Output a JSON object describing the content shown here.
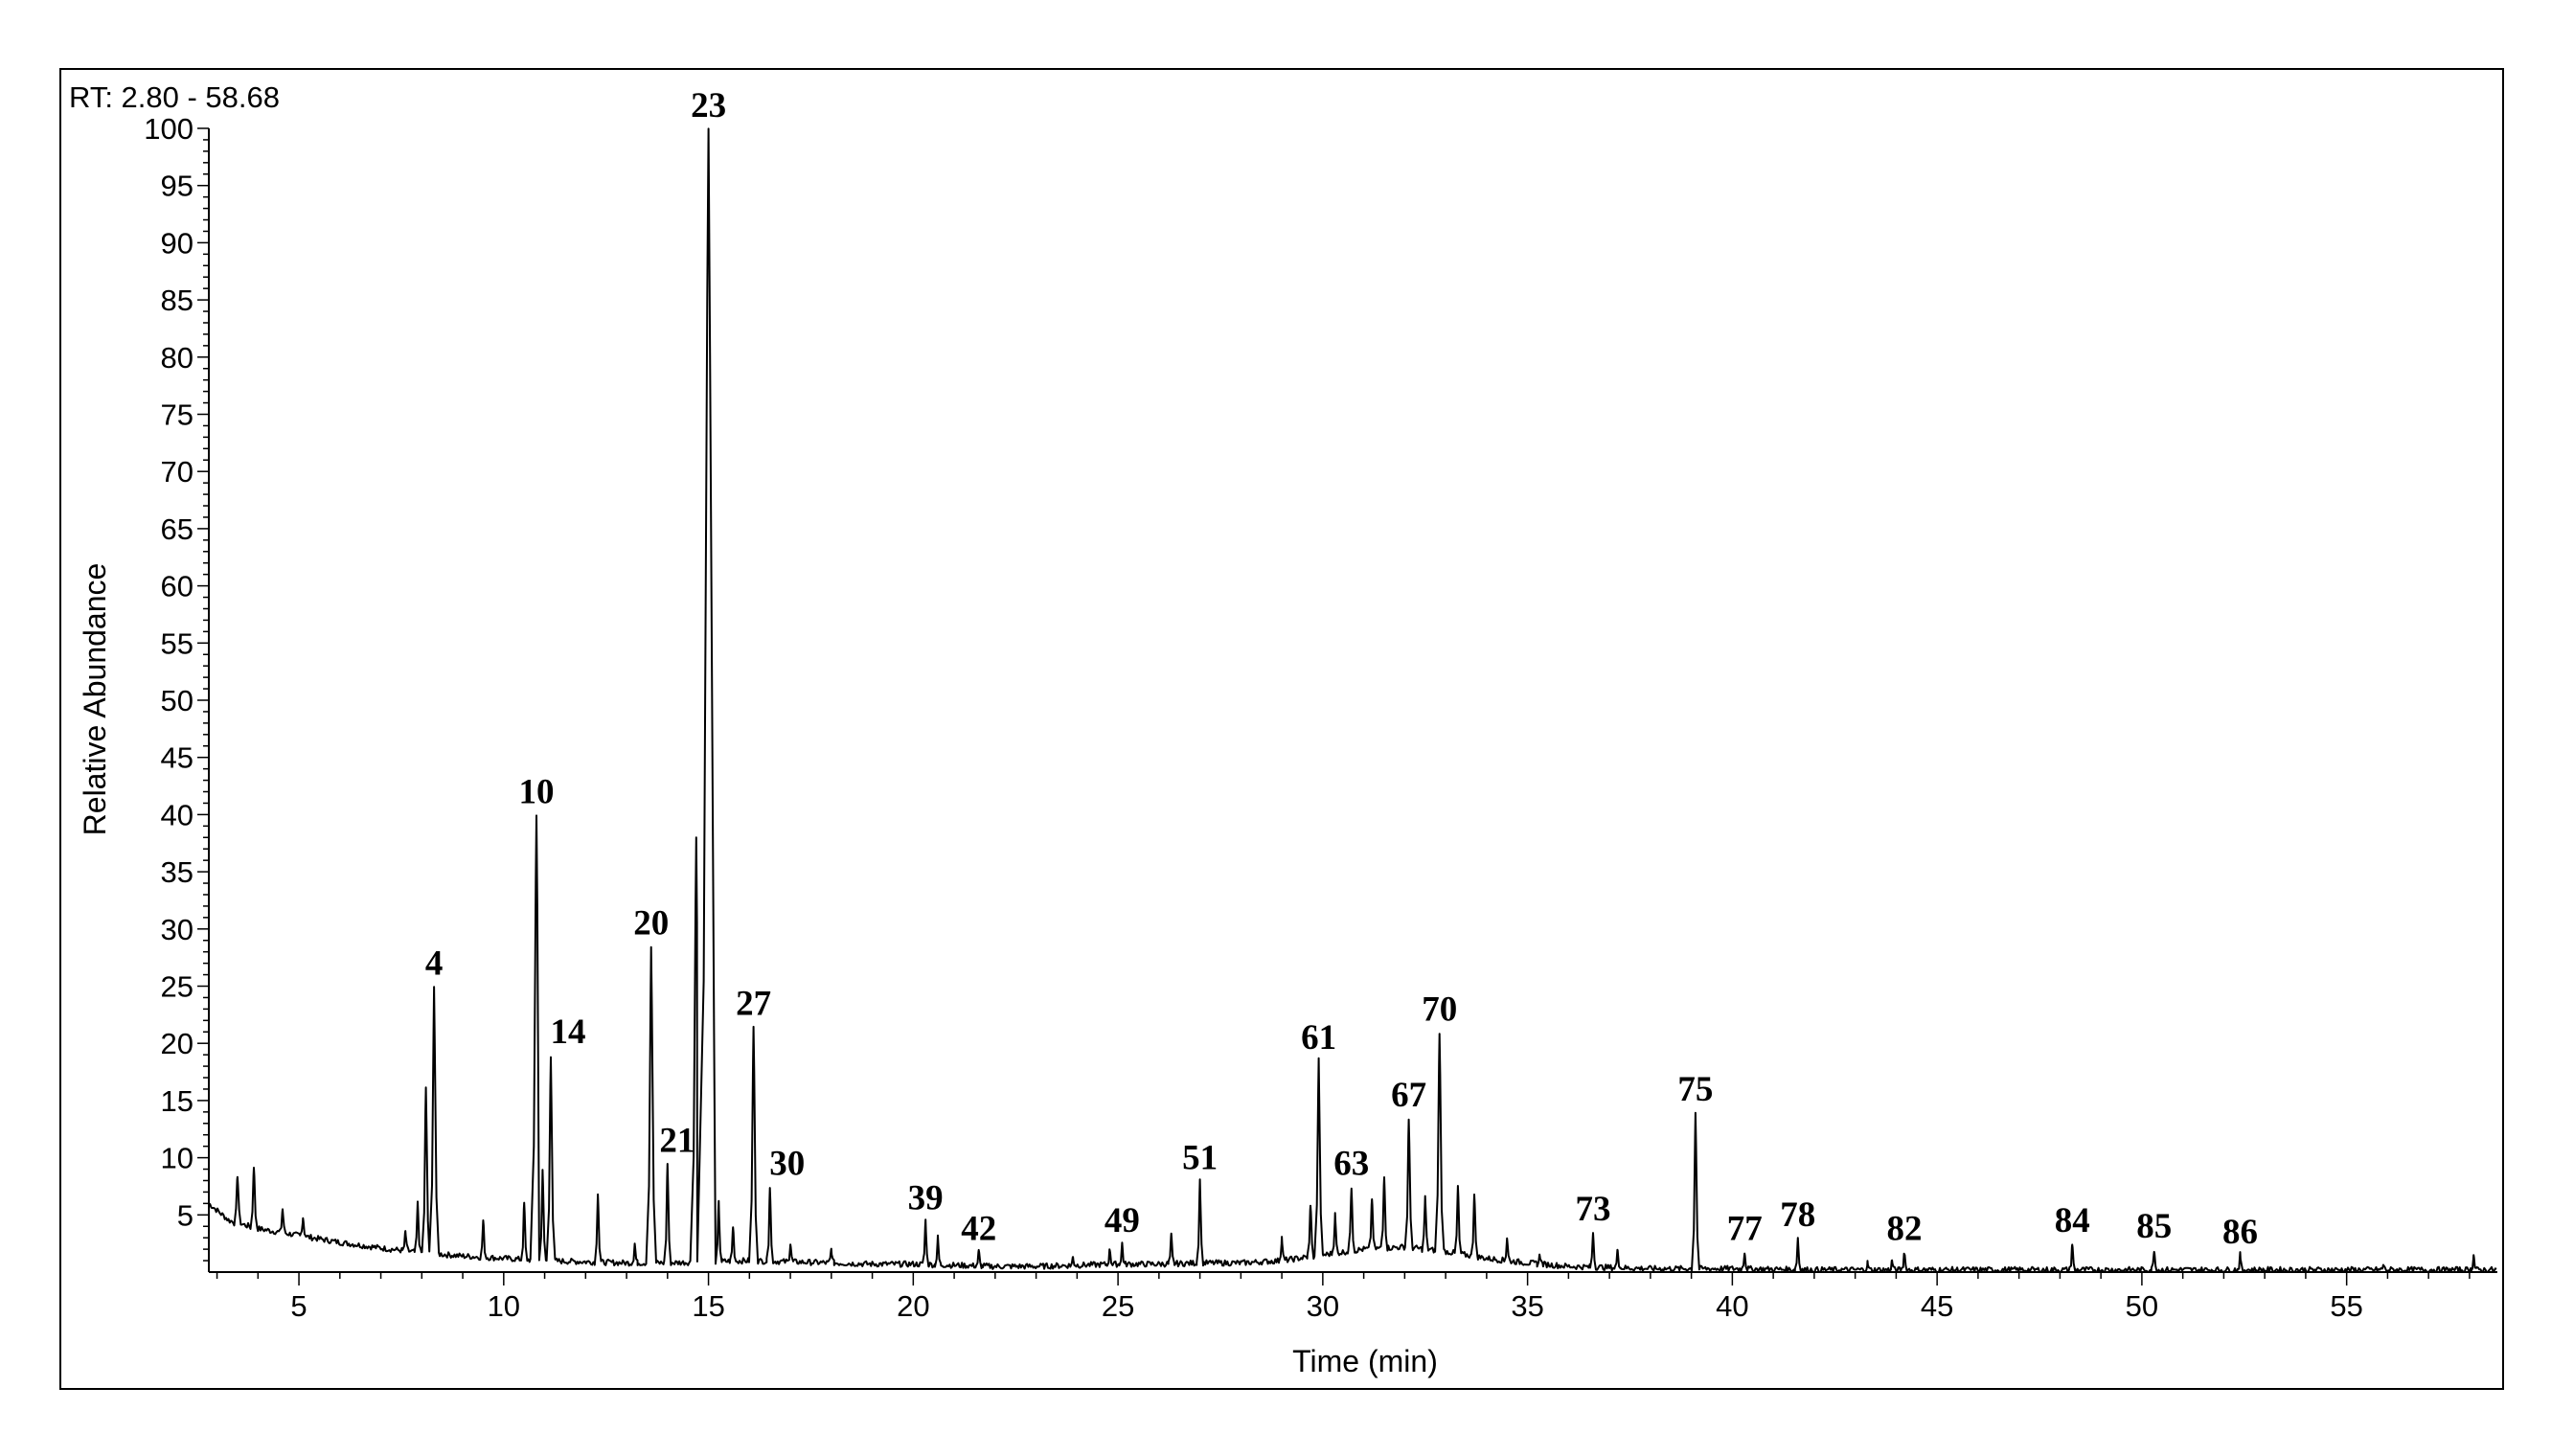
{
  "chart_data": {
    "type": "line",
    "title": "",
    "range_label": "RT: 2.80 - 58.68",
    "xlabel": "Time (min)",
    "ylabel": "Relative Abundance",
    "xlim": [
      2.8,
      58.68
    ],
    "ylim": [
      0,
      100
    ],
    "x_ticks": [
      5,
      10,
      15,
      20,
      25,
      30,
      35,
      40,
      45,
      50,
      55
    ],
    "y_ticks": [
      5,
      10,
      15,
      20,
      25,
      30,
      35,
      40,
      45,
      50,
      55,
      60,
      65,
      70,
      75,
      80,
      85,
      90,
      95,
      100
    ],
    "grid": false,
    "line_color": "#000000",
    "baseline": [
      {
        "x": 2.8,
        "y": 6.0
      },
      {
        "x": 3.3,
        "y": 4.5
      },
      {
        "x": 4.0,
        "y": 3.8
      },
      {
        "x": 5.0,
        "y": 3.2
      },
      {
        "x": 6.0,
        "y": 2.6
      },
      {
        "x": 7.0,
        "y": 2.1
      },
      {
        "x": 8.0,
        "y": 1.7
      },
      {
        "x": 9.0,
        "y": 1.4
      },
      {
        "x": 10.0,
        "y": 1.2
      },
      {
        "x": 11.0,
        "y": 1.0
      },
      {
        "x": 12.0,
        "y": 0.9
      },
      {
        "x": 13.0,
        "y": 0.8
      },
      {
        "x": 14.0,
        "y": 0.8
      },
      {
        "x": 15.0,
        "y": 0.9
      },
      {
        "x": 16.0,
        "y": 1.0
      },
      {
        "x": 17.0,
        "y": 0.9
      },
      {
        "x": 18.0,
        "y": 0.8
      },
      {
        "x": 19.0,
        "y": 0.7
      },
      {
        "x": 20.0,
        "y": 0.7
      },
      {
        "x": 21.0,
        "y": 0.6
      },
      {
        "x": 22.0,
        "y": 0.5
      },
      {
        "x": 23.0,
        "y": 0.5
      },
      {
        "x": 24.0,
        "y": 0.6
      },
      {
        "x": 25.0,
        "y": 0.7
      },
      {
        "x": 26.0,
        "y": 0.7
      },
      {
        "x": 27.0,
        "y": 0.8
      },
      {
        "x": 28.0,
        "y": 0.8
      },
      {
        "x": 29.0,
        "y": 1.0
      },
      {
        "x": 30.0,
        "y": 1.5
      },
      {
        "x": 31.0,
        "y": 2.0
      },
      {
        "x": 32.0,
        "y": 2.2
      },
      {
        "x": 33.0,
        "y": 1.8
      },
      {
        "x": 34.0,
        "y": 1.2
      },
      {
        "x": 35.0,
        "y": 0.8
      },
      {
        "x": 36.0,
        "y": 0.5
      },
      {
        "x": 37.0,
        "y": 0.4
      },
      {
        "x": 38.0,
        "y": 0.3
      },
      {
        "x": 40.0,
        "y": 0.3
      },
      {
        "x": 42.0,
        "y": 0.2
      },
      {
        "x": 45.0,
        "y": 0.2
      },
      {
        "x": 50.0,
        "y": 0.2
      },
      {
        "x": 55.0,
        "y": 0.2
      },
      {
        "x": 58.68,
        "y": 0.2
      }
    ],
    "peaks": [
      {
        "x": 3.5,
        "y": 8.5
      },
      {
        "x": 3.9,
        "y": 9.3
      },
      {
        "x": 4.6,
        "y": 5.5
      },
      {
        "x": 5.1,
        "y": 4.8
      },
      {
        "x": 7.6,
        "y": 3.5
      },
      {
        "x": 7.9,
        "y": 6.0
      },
      {
        "x": 8.1,
        "y": 16.0
      },
      {
        "x": 8.3,
        "y": 25.0,
        "label": "4"
      },
      {
        "x": 9.5,
        "y": 4.5
      },
      {
        "x": 10.5,
        "y": 6.0
      },
      {
        "x": 10.8,
        "y": 40.0,
        "label": "10"
      },
      {
        "x": 10.95,
        "y": 9.0
      },
      {
        "x": 11.15,
        "y": 19.0,
        "label": "14"
      },
      {
        "x": 12.3,
        "y": 7.0
      },
      {
        "x": 13.2,
        "y": 2.5
      },
      {
        "x": 13.6,
        "y": 28.5,
        "label": "20"
      },
      {
        "x": 14.0,
        "y": 9.5,
        "label": "21"
      },
      {
        "x": 14.7,
        "y": 38.0
      },
      {
        "x": 15.0,
        "y": 100.0,
        "label": "23"
      },
      {
        "x": 15.25,
        "y": 6.0
      },
      {
        "x": 15.6,
        "y": 4.0
      },
      {
        "x": 16.1,
        "y": 21.5,
        "label": "27"
      },
      {
        "x": 16.5,
        "y": 7.5,
        "label": "30"
      },
      {
        "x": 17.0,
        "y": 2.5
      },
      {
        "x": 18.0,
        "y": 2.0
      },
      {
        "x": 20.3,
        "y": 4.5,
        "label": "39"
      },
      {
        "x": 20.6,
        "y": 3.0
      },
      {
        "x": 21.6,
        "y": 1.8,
        "label": "42"
      },
      {
        "x": 23.9,
        "y": 1.3
      },
      {
        "x": 24.8,
        "y": 2.0
      },
      {
        "x": 25.1,
        "y": 2.5,
        "label": "49"
      },
      {
        "x": 26.3,
        "y": 3.2
      },
      {
        "x": 27.0,
        "y": 8.0,
        "label": "51"
      },
      {
        "x": 29.0,
        "y": 3.0
      },
      {
        "x": 29.7,
        "y": 6.0
      },
      {
        "x": 29.9,
        "y": 18.5,
        "label": "61"
      },
      {
        "x": 30.3,
        "y": 5.0
      },
      {
        "x": 30.7,
        "y": 7.5,
        "label": "63"
      },
      {
        "x": 31.2,
        "y": 6.5
      },
      {
        "x": 31.5,
        "y": 8.5
      },
      {
        "x": 32.1,
        "y": 13.5,
        "label": "67"
      },
      {
        "x": 32.5,
        "y": 6.5
      },
      {
        "x": 32.85,
        "y": 21.0,
        "label": "70"
      },
      {
        "x": 33.3,
        "y": 7.5
      },
      {
        "x": 33.7,
        "y": 7.0
      },
      {
        "x": 34.5,
        "y": 3.0
      },
      {
        "x": 35.3,
        "y": 1.5
      },
      {
        "x": 36.6,
        "y": 3.5,
        "label": "73"
      },
      {
        "x": 37.2,
        "y": 2.0
      },
      {
        "x": 39.1,
        "y": 14.0,
        "label": "75"
      },
      {
        "x": 40.3,
        "y": 1.8,
        "label": "77"
      },
      {
        "x": 41.6,
        "y": 3.0,
        "label": "78"
      },
      {
        "x": 43.3,
        "y": 0.8
      },
      {
        "x": 43.9,
        "y": 1.0
      },
      {
        "x": 44.2,
        "y": 1.8,
        "label": "82"
      },
      {
        "x": 48.3,
        "y": 2.5,
        "label": "84"
      },
      {
        "x": 50.3,
        "y": 2.0,
        "label": "85"
      },
      {
        "x": 52.4,
        "y": 1.5,
        "label": "86"
      },
      {
        "x": 55.9,
        "y": 0.6
      },
      {
        "x": 58.1,
        "y": 1.5
      }
    ]
  }
}
